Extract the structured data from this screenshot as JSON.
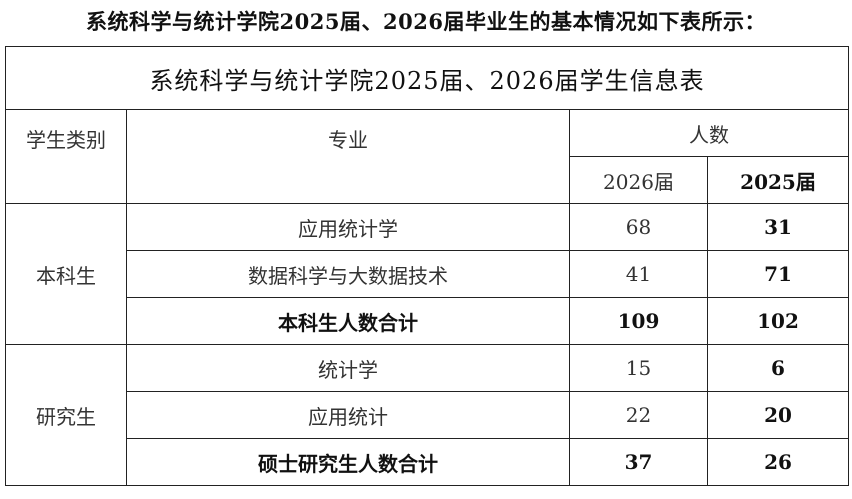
{
  "intro_text": "系统科学与统计学院2025届、2026届毕业生的基本情况如下表所示：",
  "table": {
    "title": "系统科学与统计学院2025届、2026届学生信息表",
    "headers": {
      "category": "学生类别",
      "major": "专业",
      "count": "人数",
      "year_2026": "2026届",
      "year_2025": "2025届"
    },
    "groups": [
      {
        "category": "本科生",
        "rows": [
          {
            "major": "应用统计学",
            "y2026": "68",
            "y2025": "31"
          },
          {
            "major": "数据科学与大数据技术",
            "y2026": "41",
            "y2025": "71"
          }
        ],
        "subtotal": {
          "label": "本科生人数合计",
          "y2026": "109",
          "y2025": "102"
        }
      },
      {
        "category": "研究生",
        "rows": [
          {
            "major": "统计学",
            "y2026": "15",
            "y2025": "6"
          },
          {
            "major": "应用统计",
            "y2026": "22",
            "y2025": "20"
          }
        ],
        "subtotal": {
          "label": "硕士研究生人数合计",
          "y2026": "37",
          "y2025": "26"
        }
      }
    ]
  }
}
